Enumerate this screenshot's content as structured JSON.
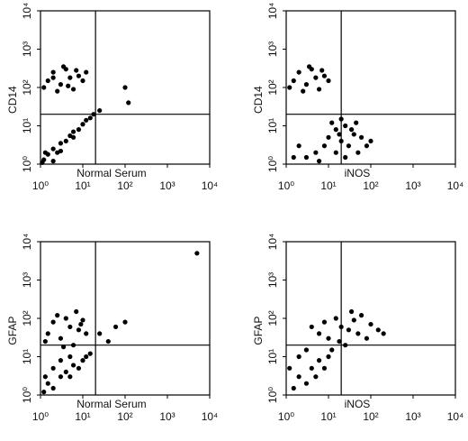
{
  "chart_data": [
    {
      "type": "scatter",
      "xlabel": "Normal Serum",
      "ylabel": "CD14",
      "log_x": true,
      "log_y": true,
      "color": "#000000",
      "xlim": [
        1,
        10000
      ],
      "ylim": [
        1,
        10000
      ],
      "xticks": [
        {
          "value": 1,
          "label": "10⁰"
        },
        {
          "value": 10,
          "label": "10¹"
        },
        {
          "value": 100,
          "label": "10²"
        },
        {
          "value": 1000,
          "label": "10³"
        },
        {
          "value": 10000,
          "label": "10⁴"
        }
      ],
      "yticks": [
        {
          "value": 1,
          "label": "10⁰"
        },
        {
          "value": 10,
          "label": "10¹"
        },
        {
          "value": 100,
          "label": "10²"
        },
        {
          "value": 1000,
          "label": "10³"
        },
        {
          "value": 10000,
          "label": "10⁴"
        }
      ],
      "quadrant": [
        20,
        20
      ],
      "x": [
        1.5,
        2,
        3,
        4,
        5,
        6,
        8,
        2.5,
        3.5,
        10,
        1.2,
        7,
        4.5,
        2,
        12,
        1.2,
        1.5,
        2,
        2.5,
        3,
        4,
        5,
        6,
        8,
        10,
        12,
        15,
        18,
        2,
        1.3,
        3,
        6,
        1.1,
        25,
        100,
        120
      ],
      "y": [
        150,
        250,
        120,
        300,
        180,
        90,
        200,
        80,
        350,
        150,
        100,
        280,
        110,
        180,
        250,
        1.3,
        1.8,
        2.5,
        2,
        3.5,
        4,
        5.5,
        7,
        8,
        11,
        14,
        16,
        20,
        1.2,
        2,
        2.2,
        5,
        1.1,
        25,
        100,
        40
      ]
    },
    {
      "type": "scatter",
      "xlabel": "iNOS",
      "ylabel": "CD14",
      "log_x": true,
      "log_y": true,
      "color": "#000000",
      "xlim": [
        1,
        10000
      ],
      "ylim": [
        1,
        10000
      ],
      "xticks": [
        {
          "value": 1,
          "label": "10⁰"
        },
        {
          "value": 10,
          "label": "10¹"
        },
        {
          "value": 100,
          "label": "10²"
        },
        {
          "value": 1000,
          "label": "10³"
        },
        {
          "value": 10000,
          "label": "10⁴"
        }
      ],
      "yticks": [
        {
          "value": 1,
          "label": "10⁰"
        },
        {
          "value": 10,
          "label": "10¹"
        },
        {
          "value": 100,
          "label": "10²"
        },
        {
          "value": 1000,
          "label": "10³"
        },
        {
          "value": 10000,
          "label": "10⁴"
        }
      ],
      "quadrant": [
        20,
        20
      ],
      "x": [
        1.5,
        2,
        3,
        4,
        5,
        6,
        8,
        2.5,
        3.5,
        10,
        1.2,
        7,
        5,
        8,
        10,
        15,
        20,
        25,
        30,
        40,
        50,
        60,
        15,
        12,
        20,
        35,
        80,
        100,
        3,
        6,
        18,
        25,
        45,
        1.5,
        2
      ],
      "y": [
        150,
        250,
        120,
        300,
        180,
        90,
        200,
        80,
        350,
        150,
        100,
        280,
        2,
        3,
        5,
        8,
        4,
        10,
        3,
        6,
        2,
        5,
        2,
        12,
        15,
        8,
        3,
        4,
        1.5,
        1.2,
        6,
        1.5,
        12,
        1.5,
        3
      ]
    },
    {
      "type": "scatter",
      "xlabel": "Normal Serum",
      "ylabel": "GFAP",
      "log_x": true,
      "log_y": true,
      "color": "#000000",
      "xlim": [
        1,
        10000
      ],
      "ylim": [
        1,
        10000
      ],
      "xticks": [
        {
          "value": 1,
          "label": "10⁰"
        },
        {
          "value": 10,
          "label": "10¹"
        },
        {
          "value": 100,
          "label": "10²"
        },
        {
          "value": 1000,
          "label": "10³"
        },
        {
          "value": 10000,
          "label": "10⁴"
        }
      ],
      "yticks": [
        {
          "value": 1,
          "label": "10⁰"
        },
        {
          "value": 10,
          "label": "10¹"
        },
        {
          "value": 100,
          "label": "10²"
        },
        {
          "value": 1000,
          "label": "10³"
        },
        {
          "value": 10000,
          "label": "10⁴"
        }
      ],
      "quadrant": [
        20,
        20
      ],
      "x": [
        1.5,
        2,
        3,
        4,
        5,
        6,
        8,
        10,
        12,
        2.5,
        1.3,
        7,
        3.5,
        9,
        1.2,
        1.5,
        2,
        3,
        4,
        5,
        6,
        8,
        10,
        12,
        1.3,
        2,
        3,
        5,
        15,
        25,
        40,
        60,
        100,
        5000
      ],
      "y": [
        40,
        80,
        30,
        100,
        60,
        20,
        50,
        90,
        40,
        120,
        25,
        150,
        18,
        70,
        1.2,
        2,
        1.5,
        3,
        4,
        3,
        6,
        5,
        8,
        10,
        3,
        5,
        8,
        10,
        12,
        40,
        25,
        60,
        80,
        5000
      ]
    },
    {
      "type": "scatter",
      "xlabel": "iNOS",
      "ylabel": "GFAP",
      "log_x": true,
      "log_y": true,
      "color": "#000000",
      "xlim": [
        1,
        10000
      ],
      "ylim": [
        1,
        10000
      ],
      "xticks": [
        {
          "value": 1,
          "label": "10⁰"
        },
        {
          "value": 10,
          "label": "10¹"
        },
        {
          "value": 100,
          "label": "10²"
        },
        {
          "value": 1000,
          "label": "10³"
        },
        {
          "value": 10000,
          "label": "10⁴"
        }
      ],
      "yticks": [
        {
          "value": 1,
          "label": "10⁰"
        },
        {
          "value": 10,
          "label": "10¹"
        },
        {
          "value": 100,
          "label": "10²"
        },
        {
          "value": 1000,
          "label": "10³"
        },
        {
          "value": 10000,
          "label": "10⁴"
        }
      ],
      "quadrant": [
        20,
        20
      ],
      "x": [
        6,
        8,
        10,
        15,
        20,
        25,
        30,
        40,
        50,
        60,
        80,
        100,
        150,
        12,
        35,
        200,
        4,
        18,
        1.5,
        2,
        3,
        4,
        5,
        6,
        8,
        10,
        1.2,
        2,
        3
      ],
      "y": [
        40,
        80,
        30,
        100,
        60,
        20,
        50,
        90,
        40,
        120,
        30,
        70,
        50,
        15,
        150,
        40,
        60,
        25,
        1.5,
        3,
        2,
        5,
        3,
        8,
        5,
        10,
        5,
        10,
        15
      ]
    }
  ]
}
